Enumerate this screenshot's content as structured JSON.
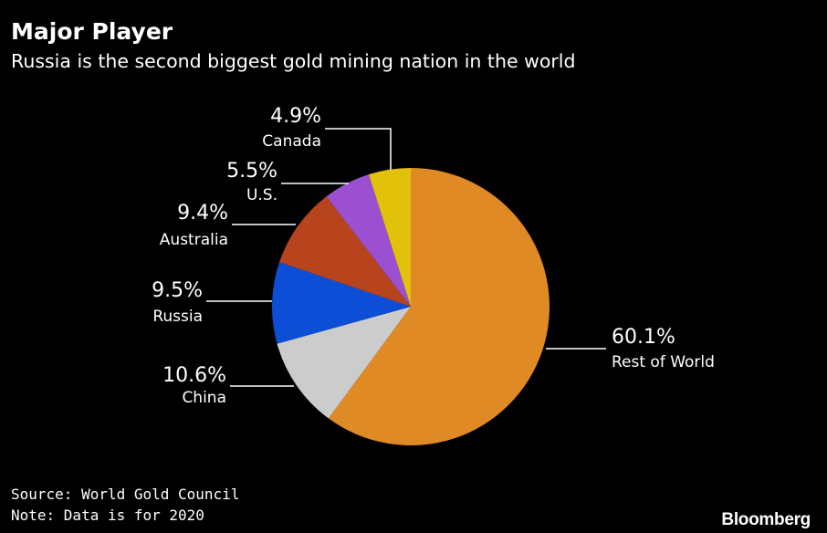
{
  "header": {
    "title": "Major Player",
    "subtitle": "Russia is the second biggest gold mining nation in the world"
  },
  "footer": {
    "source": "Source: World Gold Council",
    "note": "Note: Data is for 2020",
    "brand": "Bloomberg"
  },
  "chart_data": {
    "type": "pie",
    "title": "Major Player",
    "subtitle": "Russia is the second biggest gold mining nation in the world",
    "slices": [
      {
        "label": "Rest of World",
        "value": 60.1,
        "value_label": "60.1%",
        "color": "#E08A25"
      },
      {
        "label": "China",
        "value": 10.6,
        "value_label": "10.6%",
        "color": "#CCCCCC"
      },
      {
        "label": "Russia",
        "value": 9.5,
        "value_label": "9.5%",
        "color": "#0C4ED6"
      },
      {
        "label": "Australia",
        "value": 9.4,
        "value_label": "9.4%",
        "color": "#B8441E"
      },
      {
        "label": "U.S.",
        "value": 5.5,
        "value_label": "5.5%",
        "color": "#9A50D0"
      },
      {
        "label": "Canada",
        "value": 4.9,
        "value_label": "4.9%",
        "color": "#E2C10A"
      }
    ],
    "start": "12 o'clock",
    "direction": "clockwise",
    "legend": "none"
  }
}
